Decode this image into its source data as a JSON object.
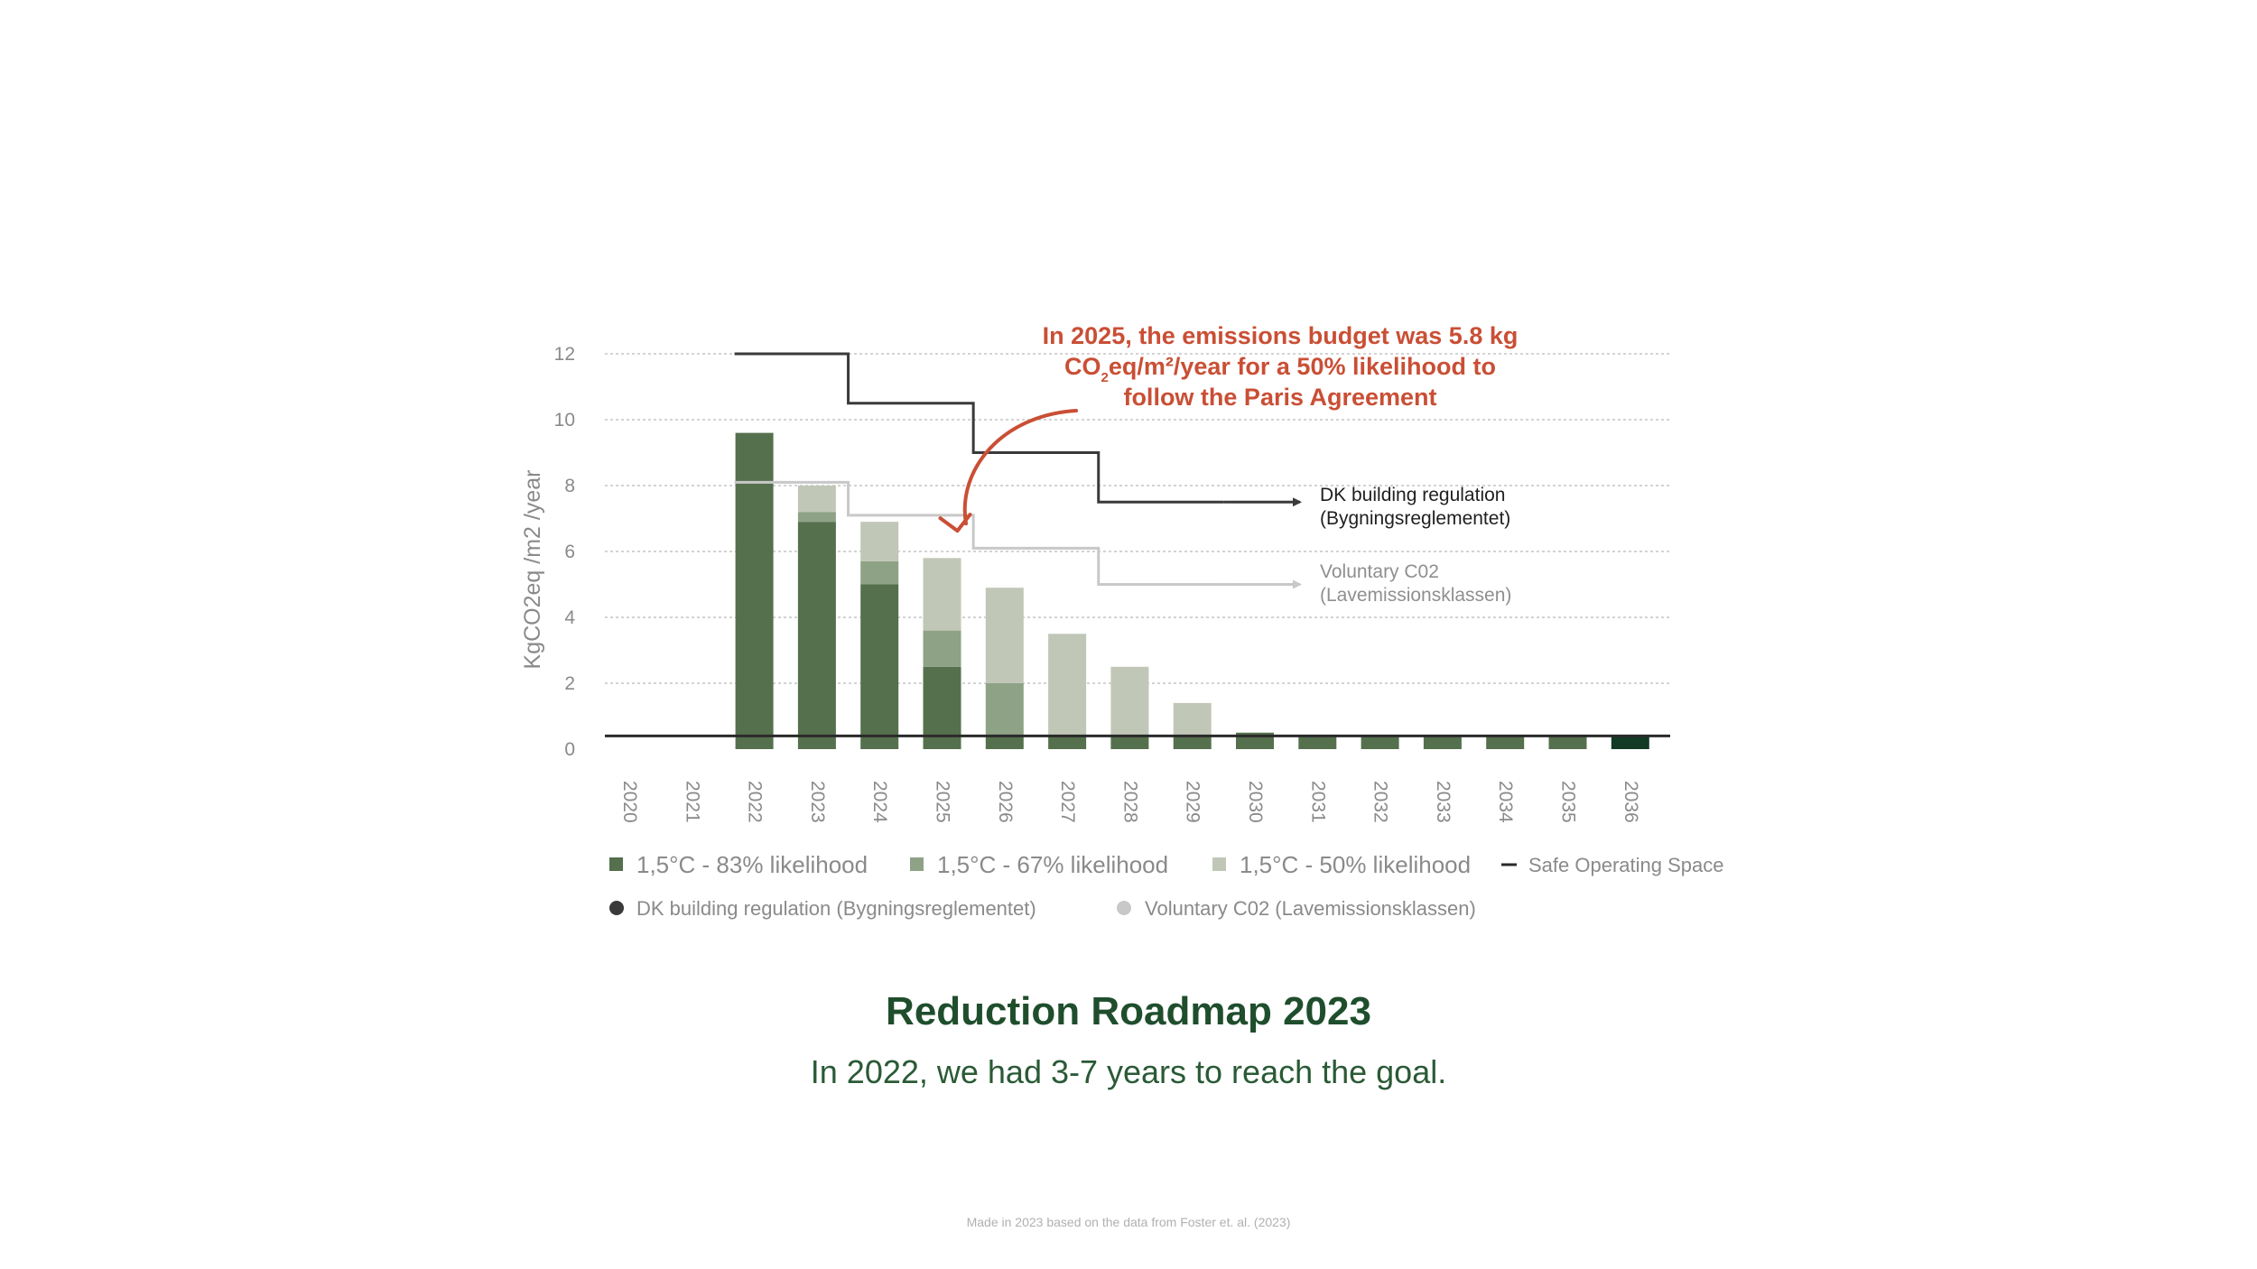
{
  "colors": {
    "s83": "#55704d",
    "s67": "#8ea286",
    "s50": "#c1c7b7",
    "last_bar": "#123a24",
    "dk_line": "#3a3a3a",
    "vol_line": "#c8c8c8",
    "safe_line": "#2a2a2a",
    "annotation": "#c94f35",
    "title": "#1f4e2d"
  },
  "chart_data": {
    "type": "bar",
    "stacked": true,
    "ylabel": "KgCO2eq /m2 /year",
    "ylim": [
      0,
      12
    ],
    "yticks": [
      "0",
      "2",
      "4",
      "6",
      "8",
      "10",
      "12"
    ],
    "grid": true,
    "categories": [
      "2020",
      "2021",
      "2022",
      "2023",
      "2024",
      "2025",
      "2026",
      "2027",
      "2028",
      "2029",
      "2030",
      "2031",
      "2032",
      "2033",
      "2034",
      "2035",
      "2036"
    ],
    "series": [
      {
        "name": "1,5°C - 83% likelihood",
        "values": [
          0,
          0,
          9.6,
          6.9,
          5.0,
          2.5,
          0.4,
          0.4,
          0.4,
          0.4,
          0.5,
          0.4,
          0.4,
          0.4,
          0.4,
          0.4,
          0.4
        ]
      },
      {
        "name": "1,5°C - 67% likelihood",
        "values": [
          0,
          0,
          0,
          0.3,
          0.7,
          1.1,
          1.6,
          0,
          0,
          0,
          0,
          0,
          0,
          0,
          0,
          0,
          0
        ]
      },
      {
        "name": "1,5°C - 50% likelihood",
        "values": [
          0,
          0,
          0,
          0.8,
          1.2,
          2.2,
          2.9,
          3.1,
          2.1,
          1.0,
          0,
          0,
          0,
          0,
          0,
          0,
          0
        ]
      }
    ],
    "safe_operating_space": {
      "name": "Safe Operating Space",
      "value": 0.4
    },
    "step_lines": [
      {
        "name": "DK building regulation (Bygningsreglementet)",
        "steps": [
          {
            "from": "2022",
            "to": "2024",
            "value": 12
          },
          {
            "from": "2024",
            "to": "2026",
            "value": 10.5
          },
          {
            "from": "2026",
            "to": "2028",
            "value": 9.0
          },
          {
            "from": "2028",
            "to": "2030",
            "value": 7.5
          }
        ],
        "label_line1": "DK building regulation",
        "label_line2": "(Bygningsreglementet)"
      },
      {
        "name": "Voluntary C02 (Lavemissionsklassen)",
        "steps": [
          {
            "from": "2022",
            "to": "2024",
            "value": 8.1
          },
          {
            "from": "2024",
            "to": "2026",
            "value": 7.1
          },
          {
            "from": "2026",
            "to": "2028",
            "value": 6.1
          },
          {
            "from": "2028",
            "to": "2030",
            "value": 5.0
          }
        ],
        "label_line1": "Voluntary C02",
        "label_line2": "(Lavemissionsklassen)"
      }
    ],
    "annotation": {
      "line1": "In 2025, the emissions budget was 5.8 kg",
      "line2a": "CO",
      "line2sub": "2",
      "line2b": "eq/m²/year for a 50% likelihood to",
      "line3": "follow the Paris Agreement",
      "target_category": "2025",
      "target_value": 6.9
    },
    "legend": {
      "row1": [
        "1,5°C - 83% likelihood",
        "1,5°C - 67% likelihood",
        "1,5°C - 50% likelihood",
        "Safe Operating Space"
      ],
      "row2": [
        "DK building regulation (Bygningsreglementet)",
        "Voluntary C02 (Lavemissionsklassen)"
      ]
    }
  },
  "title": "Reduction Roadmap 2023",
  "subtitle": "In 2022, we had 3-7 years to reach the goal.",
  "footnote": "Made in 2023 based on the data from Foster et. al. (2023)"
}
